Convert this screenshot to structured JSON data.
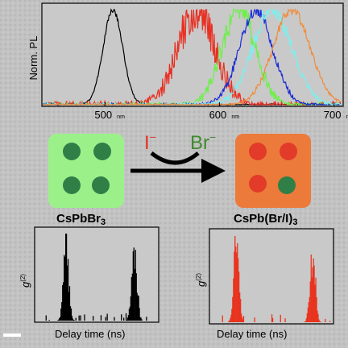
{
  "colors": {
    "background": "#bdbdbd",
    "green_cube": "#9cf08a",
    "orange_cube": "#ec7a3a",
    "green_dot": "#2f7f47",
    "red_dot": "#e23b2a",
    "iodide": "#e0321f",
    "bromide": "#3f8a2f",
    "black_hist": "#000000",
    "red_hist": "#e8341f"
  },
  "pl": {
    "ylabel": "Norm. PL",
    "unit": "nm",
    "ticks": [
      {
        "value": 500,
        "label": "500"
      },
      {
        "value": 600,
        "label": "600"
      },
      {
        "value": 700,
        "label": "700"
      }
    ]
  },
  "reaction": {
    "reactant_label": "CsPbBr",
    "reactant_sub": "3",
    "product_label": "CsPb(Br/I)",
    "product_sub": "3",
    "ion_in": "I",
    "ion_in_charge": "−",
    "ion_out": "Br",
    "ion_out_charge": "−"
  },
  "g2_left": {
    "ylabel_g": "g",
    "ylabel_sup": "(2)",
    "xlabel": "Delay time (ns)"
  },
  "g2_right": {
    "ylabel_g": "g",
    "ylabel_sup": "(2)",
    "xlabel": "Delay time (ns)"
  },
  "chart_data": [
    {
      "type": "line",
      "ylabel": "Norm. PL",
      "xlabel": "nm",
      "xlim": [
        445,
        708
      ],
      "ylim": [
        0,
        1
      ],
      "grid": false,
      "series": [
        {
          "color": "#000000",
          "peak_nm": 507,
          "fwhm_nm": 20,
          "noise": 0.03
        },
        {
          "color": "#e83022",
          "peak_nm": 580,
          "fwhm_nm": 38,
          "noise": 0.22
        },
        {
          "color": "#6cf04a",
          "peak_nm": 617,
          "fwhm_nm": 34,
          "noise": 0.15
        },
        {
          "color": "#1a2ad6",
          "peak_nm": 632,
          "fwhm_nm": 34,
          "noise": 0.08
        },
        {
          "color": "#7eeeee",
          "peak_nm": 646,
          "fwhm_nm": 40,
          "noise": 0.1
        },
        {
          "color": "#f08c3a",
          "peak_nm": 663,
          "fwhm_nm": 38,
          "noise": 0.05
        }
      ]
    },
    {
      "type": "bar",
      "name": "CsPbBr3 g2",
      "xlabel": "Delay time (ns)",
      "ylabel": "g(2)",
      "color": "#000000",
      "peaks": [
        {
          "x": 0.24,
          "height": 1.0
        },
        {
          "x": 0.82,
          "height": 0.93
        }
      ],
      "center_dip": 0.08
    },
    {
      "type": "bar",
      "name": "CsPb(Br/I)3 g2",
      "xlabel": "Delay time (ns)",
      "ylabel": "g(2)",
      "color": "#e8341f",
      "peaks": [
        {
          "x": 0.2,
          "height": 1.0
        },
        {
          "x": 0.85,
          "height": 0.93
        }
      ],
      "center_dip": 0.1
    }
  ]
}
